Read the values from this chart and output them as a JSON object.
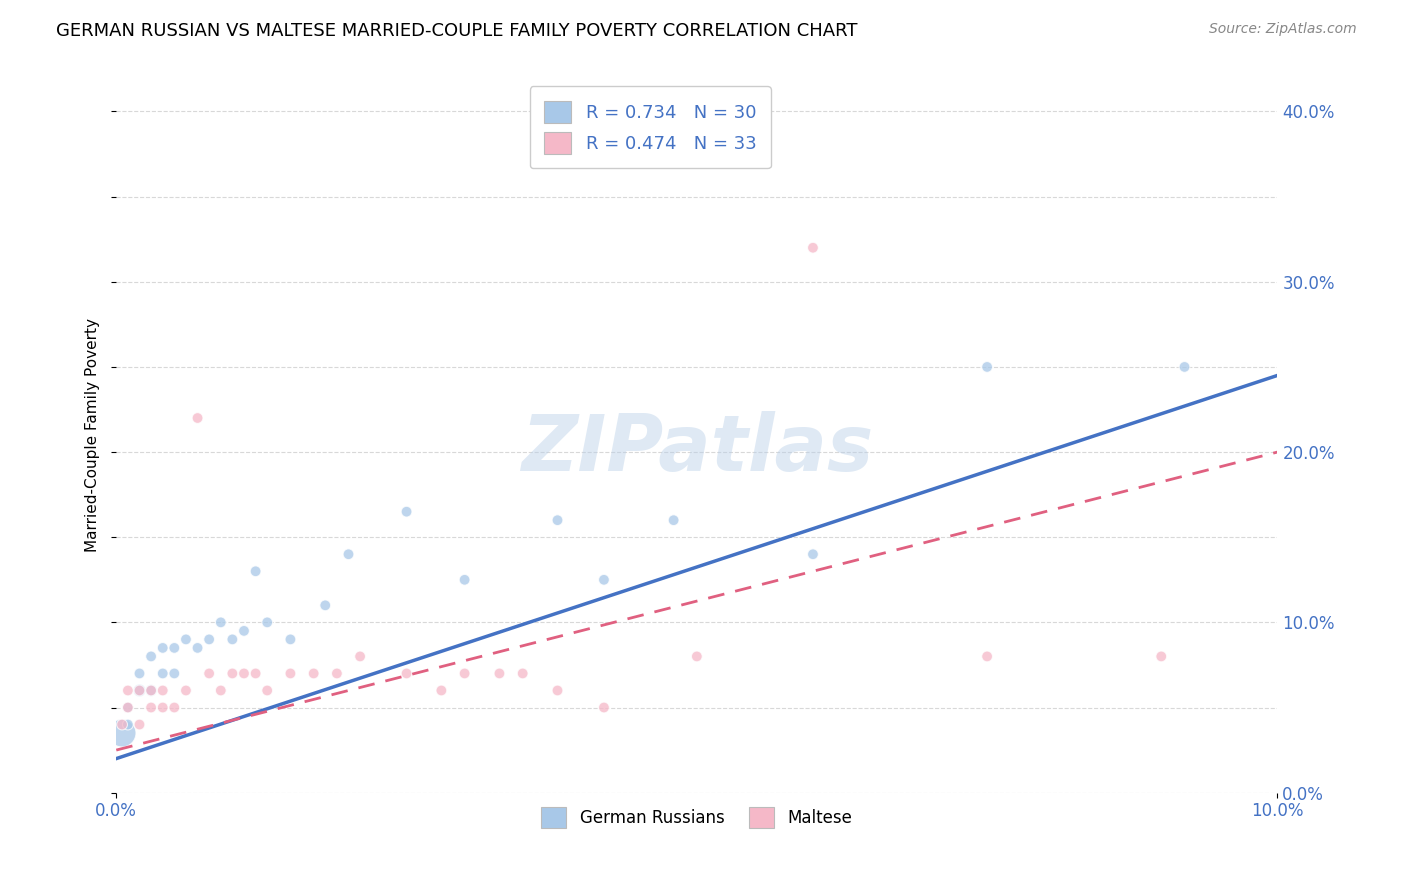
{
  "title": "GERMAN RUSSIAN VS MALTESE MARRIED-COUPLE FAMILY POVERTY CORRELATION CHART",
  "source": "Source: ZipAtlas.com",
  "ylabel": "Married-Couple Family Poverty",
  "xlim": [
    0.0,
    0.1
  ],
  "ylim": [
    0.0,
    0.42
  ],
  "background_color": "#ffffff",
  "grid_color": "#d8d8d8",
  "watermark": "ZIPatlas",
  "blue_color": "#a8c8e8",
  "pink_color": "#f5b8c8",
  "blue_line_color": "#4472c4",
  "pink_line_color": "#e06080",
  "label_color": "#4472c4",
  "legend_text_color": "#333333",
  "german_russian_x": [
    0.0005,
    0.001,
    0.001,
    0.002,
    0.002,
    0.003,
    0.003,
    0.004,
    0.004,
    0.005,
    0.005,
    0.006,
    0.007,
    0.008,
    0.009,
    0.01,
    0.011,
    0.012,
    0.013,
    0.015,
    0.018,
    0.02,
    0.025,
    0.03,
    0.038,
    0.042,
    0.048,
    0.06,
    0.075,
    0.092
  ],
  "german_russian_y": [
    0.035,
    0.04,
    0.05,
    0.06,
    0.07,
    0.06,
    0.08,
    0.07,
    0.085,
    0.07,
    0.085,
    0.09,
    0.085,
    0.09,
    0.1,
    0.09,
    0.095,
    0.13,
    0.1,
    0.09,
    0.11,
    0.14,
    0.165,
    0.125,
    0.16,
    0.125,
    0.16,
    0.14,
    0.25,
    0.25
  ],
  "german_russian_sizes": [
    400,
    60,
    60,
    80,
    60,
    70,
    60,
    60,
    60,
    60,
    60,
    60,
    60,
    60,
    60,
    60,
    60,
    60,
    60,
    60,
    60,
    60,
    60,
    60,
    60,
    60,
    60,
    60,
    60,
    60
  ],
  "maltese_x": [
    0.0005,
    0.001,
    0.001,
    0.002,
    0.002,
    0.003,
    0.003,
    0.004,
    0.004,
    0.005,
    0.006,
    0.007,
    0.008,
    0.009,
    0.01,
    0.011,
    0.012,
    0.013,
    0.015,
    0.017,
    0.019,
    0.021,
    0.025,
    0.028,
    0.03,
    0.033,
    0.035,
    0.038,
    0.042,
    0.05,
    0.06,
    0.075,
    0.09
  ],
  "maltese_y": [
    0.04,
    0.05,
    0.06,
    0.04,
    0.06,
    0.05,
    0.06,
    0.05,
    0.06,
    0.05,
    0.06,
    0.22,
    0.07,
    0.06,
    0.07,
    0.07,
    0.07,
    0.06,
    0.07,
    0.07,
    0.07,
    0.08,
    0.07,
    0.06,
    0.07,
    0.07,
    0.07,
    0.06,
    0.05,
    0.08,
    0.32,
    0.08,
    0.08
  ],
  "maltese_sizes": [
    60,
    60,
    60,
    60,
    60,
    60,
    60,
    60,
    60,
    60,
    60,
    60,
    60,
    60,
    60,
    60,
    60,
    60,
    60,
    60,
    60,
    60,
    60,
    60,
    60,
    60,
    60,
    60,
    60,
    60,
    60,
    60,
    60
  ],
  "blue_line_x0": 0.0,
  "blue_line_y0": 0.02,
  "blue_line_x1": 0.1,
  "blue_line_y1": 0.245,
  "pink_line_x0": 0.0,
  "pink_line_y0": 0.025,
  "pink_line_x1": 0.1,
  "pink_line_y1": 0.2,
  "ytick_positions": [
    0.0,
    0.1,
    0.2,
    0.3,
    0.4
  ],
  "xtick_positions": [
    0.0,
    0.1
  ],
  "legend1_label": "R = 0.734   N = 30",
  "legend2_label": "R = 0.474   N = 33",
  "bottom_legend1": "German Russians",
  "bottom_legend2": "Maltese"
}
